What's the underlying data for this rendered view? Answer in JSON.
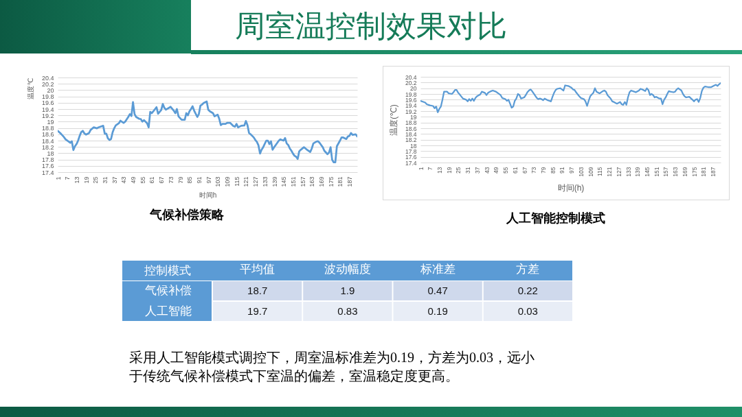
{
  "chart_data": [
    {
      "type": "other",
      "title": "周室温控制效果对比"
    },
    {
      "type": "line",
      "title": "气候补偿策略",
      "xlabel": "时间h",
      "ylabel": "温度℃",
      "color": "#5b9bd5",
      "x": [
        1,
        3,
        5,
        6,
        9,
        10,
        11,
        12,
        13,
        14,
        15,
        16,
        17,
        18,
        19,
        21,
        22,
        24,
        26,
        27,
        30,
        31,
        32,
        33,
        34,
        35,
        36,
        37,
        38,
        40,
        41,
        43,
        44,
        46,
        47,
        48,
        49,
        50,
        51,
        53,
        54,
        55,
        56,
        58,
        59,
        60,
        61,
        62,
        64,
        65,
        67,
        68,
        69,
        70,
        73,
        75,
        76,
        77,
        78,
        80,
        82,
        83,
        84,
        85,
        86,
        87,
        88,
        90,
        91,
        92,
        93,
        94,
        96,
        97,
        98,
        100,
        101,
        103,
        104,
        105,
        106,
        108,
        109,
        111,
        113,
        114,
        115,
        116,
        118,
        120,
        121,
        122,
        123,
        124,
        126,
        127,
        128,
        129,
        130,
        131,
        132,
        134,
        135,
        136,
        137,
        138,
        139,
        140,
        142,
        143,
        145,
        146,
        147,
        148,
        149,
        150,
        151,
        152,
        153,
        154,
        155,
        156,
        158,
        159,
        160,
        162,
        163,
        164,
        166,
        167,
        168,
        169,
        170,
        171,
        173,
        174,
        175,
        176,
        177,
        178,
        179,
        181,
        182,
        183,
        185,
        186,
        187,
        188,
        189,
        191,
        192
      ],
      "values": [
        18.71,
        18.62,
        18.51,
        18.44,
        18.33,
        18.38,
        18.1,
        18.22,
        18.29,
        18.4,
        18.55,
        18.67,
        18.71,
        18.63,
        18.59,
        18.64,
        18.74,
        18.82,
        18.79,
        18.82,
        18.87,
        18.62,
        18.62,
        18.47,
        18.42,
        18.45,
        18.66,
        18.79,
        18.88,
        18.95,
        19.03,
        18.96,
        19.0,
        19.15,
        19.24,
        19.18,
        19.62,
        19.24,
        19.15,
        19.09,
        19.08,
        19.0,
        19.05,
        18.95,
        18.82,
        19.31,
        19.27,
        19.33,
        19.46,
        19.25,
        19.37,
        19.56,
        19.44,
        19.38,
        19.47,
        19.35,
        19.27,
        19.4,
        19.17,
        19.06,
        19.06,
        19.27,
        19.2,
        19.33,
        19.4,
        19.49,
        19.35,
        19.15,
        19.24,
        19.51,
        19.54,
        19.59,
        19.64,
        19.38,
        19.33,
        19.27,
        19.17,
        19.22,
        19.09,
        18.89,
        18.93,
        18.93,
        18.96,
        18.96,
        18.86,
        18.84,
        18.93,
        18.82,
        18.87,
        18.88,
        19.02,
        18.89,
        18.64,
        18.6,
        18.5,
        18.42,
        18.36,
        18.25,
        17.99,
        18.11,
        18.19,
        18.4,
        18.4,
        18.29,
        18.38,
        18.11,
        18.19,
        18.26,
        18.4,
        18.44,
        18.4,
        18.48,
        18.31,
        18.26,
        18.15,
        18.08,
        17.99,
        17.92,
        17.89,
        17.82,
        18.06,
        18.11,
        18.19,
        18.15,
        18.11,
        18.04,
        18.15,
        18.31,
        18.37,
        18.38,
        18.33,
        18.26,
        18.19,
        18.08,
        17.97,
        18.02,
        18.19,
        17.79,
        17.71,
        17.71,
        18.22,
        18.4,
        18.5,
        18.5,
        18.45,
        18.53,
        18.55,
        18.64,
        18.58,
        18.6,
        18.53
      ],
      "xlim": [
        1,
        192
      ],
      "xticks": [
        1,
        7,
        13,
        19,
        25,
        31,
        37,
        43,
        49,
        55,
        61,
        67,
        73,
        79,
        85,
        91,
        97,
        103,
        109,
        115,
        121,
        127,
        133,
        139,
        145,
        151,
        157,
        163,
        169,
        175,
        181,
        187
      ],
      "ylim": [
        17.4,
        20.4
      ],
      "yticks": [
        17.4,
        17.6,
        17.8,
        18,
        18.2,
        18.4,
        18.6,
        18.8,
        19,
        19.2,
        19.4,
        19.6,
        19.8,
        20,
        20.2,
        20.4
      ],
      "grid": "y"
    },
    {
      "type": "line",
      "title": "人工智能控制模式",
      "xlabel": "时间(h)",
      "ylabel": "温度(℃)",
      "color": "#5b9bd5",
      "x": [
        1,
        4,
        5,
        7,
        9,
        10,
        11,
        12,
        13,
        14,
        15,
        16,
        18,
        19,
        21,
        22,
        23,
        24,
        25,
        26,
        28,
        30,
        31,
        32,
        33,
        34,
        35,
        36,
        37,
        39,
        40,
        42,
        43,
        44,
        46,
        47,
        49,
        52,
        53,
        55,
        56,
        57,
        58,
        59,
        60,
        61,
        62,
        63,
        64,
        65,
        67,
        68,
        69,
        70,
        71,
        72,
        73,
        75,
        76,
        77,
        78,
        79,
        80,
        82,
        83,
        84,
        85,
        86,
        87,
        88,
        90,
        91,
        92,
        93,
        95,
        97,
        98,
        99,
        100,
        102,
        103,
        105,
        106,
        107,
        108,
        109,
        111,
        112,
        113,
        115,
        117,
        118,
        119,
        120,
        122,
        123,
        124,
        126,
        128,
        129,
        130,
        131,
        132,
        133,
        134,
        135,
        137,
        138,
        140,
        141,
        142,
        144,
        145,
        146,
        147,
        148,
        149,
        150,
        151,
        153,
        154,
        155,
        156,
        157,
        158,
        159,
        160,
        162,
        163,
        164,
        165,
        167,
        168,
        169,
        170,
        172,
        174,
        175,
        176,
        177,
        178,
        179,
        180,
        181,
        182,
        184,
        186,
        188,
        189,
        190,
        191,
        192
      ],
      "values": [
        19.56,
        19.5,
        19.44,
        19.4,
        19.38,
        19.3,
        19.36,
        19.16,
        19.28,
        19.36,
        19.6,
        19.88,
        19.88,
        19.82,
        19.8,
        19.86,
        19.94,
        19.94,
        19.84,
        19.78,
        19.64,
        19.6,
        19.54,
        19.62,
        19.56,
        19.64,
        19.56,
        19.66,
        19.72,
        19.78,
        19.88,
        19.84,
        19.76,
        19.84,
        19.9,
        19.92,
        19.88,
        19.76,
        19.66,
        19.62,
        19.56,
        19.6,
        19.46,
        19.32,
        19.36,
        19.56,
        19.64,
        19.8,
        19.76,
        19.64,
        19.68,
        19.76,
        19.86,
        19.92,
        19.96,
        19.9,
        19.82,
        19.66,
        19.62,
        19.64,
        19.62,
        19.58,
        19.64,
        19.58,
        19.56,
        19.54,
        19.7,
        19.84,
        19.94,
        19.98,
        20.0,
        19.96,
        19.92,
        20.1,
        20.08,
        20.02,
        19.96,
        19.94,
        19.86,
        19.72,
        19.66,
        19.62,
        19.54,
        19.38,
        19.56,
        19.72,
        19.84,
        20.0,
        19.88,
        19.82,
        19.9,
        19.92,
        19.88,
        19.76,
        19.64,
        19.54,
        19.52,
        19.46,
        19.52,
        19.44,
        19.42,
        19.52,
        19.42,
        19.68,
        19.86,
        19.92,
        19.88,
        19.86,
        19.92,
        19.98,
        19.96,
        19.9,
        20.0,
        19.94,
        19.76,
        19.8,
        19.76,
        19.68,
        19.7,
        19.64,
        19.64,
        19.44,
        19.6,
        19.68,
        19.8,
        19.9,
        19.88,
        19.86,
        19.88,
        19.96,
        20.0,
        19.92,
        19.8,
        19.72,
        19.68,
        19.7,
        19.6,
        19.54,
        19.6,
        19.62,
        19.52,
        19.66,
        19.9,
        20.02,
        20.06,
        20.04,
        20.04,
        20.1,
        20.12,
        20.08,
        20.14,
        20.18
      ],
      "xlim": [
        1,
        192
      ],
      "xticks": [
        1,
        7,
        13,
        19,
        25,
        31,
        37,
        43,
        49,
        55,
        61,
        67,
        73,
        79,
        85,
        91,
        97,
        103,
        109,
        115,
        121,
        127,
        133,
        139,
        145,
        151,
        157,
        163,
        169,
        175,
        181,
        187
      ],
      "ylim": [
        17.4,
        20.4
      ],
      "yticks": [
        17.4,
        17.6,
        17.8,
        18,
        18.2,
        18.4,
        18.6,
        18.8,
        19,
        19.2,
        19.4,
        19.6,
        19.8,
        20,
        20.2,
        20.4
      ],
      "grid": "y"
    },
    {
      "type": "heatmap",
      "ylabel": "控制模式",
      "categories": [
        "平均值",
        "波动幅度",
        "标准差",
        "方差"
      ],
      "y_categories": [
        "气候补偿",
        "人工智能"
      ],
      "cells": [
        [
          18.7,
          1.9,
          0.47,
          0.22
        ],
        [
          19.7,
          0.83,
          0.19,
          0.03
        ]
      ],
      "data_labels": true,
      "annotations": [
        "采用人工智能模式调控下，周室温标准差为0.19，方差为0.03，远小于传统气候补偿模式下室温的偏差，室温稳定度更高。"
      ]
    }
  ]
}
